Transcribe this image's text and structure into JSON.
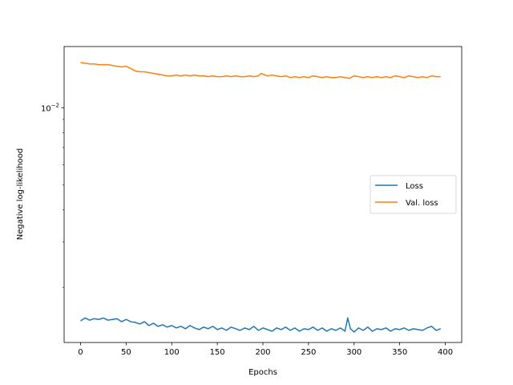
{
  "chart_data": {
    "type": "line",
    "title": "",
    "xlabel": "Epochs",
    "ylabel": "Negative log-likelihood",
    "yscale": "log",
    "xlim": [
      -18,
      418
    ],
    "ylim": [
      0.00122,
      0.0173
    ],
    "xticks": [
      0,
      50,
      100,
      150,
      200,
      250,
      300,
      350,
      400
    ],
    "xtick_labels": [
      "0",
      "50",
      "100",
      "150",
      "200",
      "250",
      "300",
      "350",
      "400"
    ],
    "ytick_major": [
      {
        "value": 0.01,
        "base": "10",
        "exp": "−2"
      }
    ],
    "legend": {
      "placement": "center-right"
    },
    "grid": false,
    "series": [
      {
        "name": "Loss",
        "color": "#1f77b4",
        "x": [
          0,
          5,
          10,
          15,
          20,
          25,
          30,
          35,
          40,
          45,
          50,
          55,
          60,
          65,
          70,
          75,
          80,
          85,
          90,
          95,
          100,
          105,
          110,
          115,
          120,
          125,
          130,
          135,
          140,
          145,
          150,
          155,
          160,
          165,
          170,
          175,
          180,
          185,
          190,
          195,
          200,
          205,
          210,
          215,
          220,
          225,
          230,
          235,
          240,
          245,
          250,
          255,
          260,
          265,
          270,
          275,
          280,
          285,
          290,
          293,
          296,
          300,
          305,
          310,
          315,
          320,
          325,
          330,
          335,
          340,
          345,
          350,
          355,
          360,
          365,
          370,
          375,
          380,
          385,
          390,
          395
        ],
        "values": [
          0.00148,
          0.00152,
          0.00149,
          0.00151,
          0.0015,
          0.00152,
          0.00149,
          0.0015,
          0.00151,
          0.00147,
          0.0015,
          0.00147,
          0.00146,
          0.00144,
          0.00147,
          0.00142,
          0.00145,
          0.00141,
          0.00143,
          0.0014,
          0.00142,
          0.00139,
          0.00141,
          0.00138,
          0.00142,
          0.00139,
          0.00137,
          0.0014,
          0.00138,
          0.00141,
          0.00137,
          0.00139,
          0.00136,
          0.0014,
          0.00138,
          0.00136,
          0.00139,
          0.00137,
          0.00141,
          0.00136,
          0.00139,
          0.00137,
          0.00135,
          0.00139,
          0.00137,
          0.0014,
          0.00136,
          0.00139,
          0.00135,
          0.00138,
          0.00137,
          0.0014,
          0.00136,
          0.00139,
          0.00135,
          0.00138,
          0.00136,
          0.00139,
          0.00135,
          0.00152,
          0.00138,
          0.00134,
          0.00139,
          0.00136,
          0.0014,
          0.00135,
          0.00138,
          0.00137,
          0.00139,
          0.00135,
          0.00138,
          0.00137,
          0.00139,
          0.00136,
          0.00138,
          0.00137,
          0.00136,
          0.00139,
          0.00141,
          0.00136,
          0.00138
        ]
      },
      {
        "name": "Val. loss",
        "color": "#ff7f0e",
        "x": [
          0,
          5,
          10,
          15,
          20,
          25,
          30,
          35,
          40,
          45,
          50,
          55,
          60,
          65,
          70,
          75,
          80,
          85,
          90,
          95,
          100,
          105,
          110,
          115,
          120,
          125,
          130,
          135,
          140,
          145,
          150,
          155,
          160,
          165,
          170,
          175,
          180,
          185,
          190,
          195,
          198,
          200,
          205,
          210,
          215,
          220,
          225,
          230,
          235,
          240,
          245,
          250,
          255,
          260,
          265,
          270,
          275,
          280,
          285,
          290,
          295,
          300,
          305,
          310,
          315,
          320,
          325,
          330,
          335,
          340,
          345,
          350,
          355,
          360,
          365,
          370,
          375,
          380,
          385,
          390,
          395
        ],
        "values": [
          0.015,
          0.0149,
          0.0148,
          0.0148,
          0.0147,
          0.0147,
          0.0147,
          0.0146,
          0.0145,
          0.0144,
          0.0145,
          0.0142,
          0.0139,
          0.0138,
          0.0138,
          0.0137,
          0.0136,
          0.0135,
          0.0134,
          0.0133,
          0.0133,
          0.0134,
          0.0133,
          0.0134,
          0.0133,
          0.0134,
          0.0133,
          0.0133,
          0.0132,
          0.0133,
          0.0132,
          0.0132,
          0.0133,
          0.0132,
          0.0133,
          0.0132,
          0.0132,
          0.0133,
          0.0132,
          0.0133,
          0.0136,
          0.0135,
          0.0133,
          0.0134,
          0.0133,
          0.0132,
          0.0133,
          0.0131,
          0.0132,
          0.0131,
          0.0132,
          0.0131,
          0.0133,
          0.0132,
          0.0131,
          0.0132,
          0.0131,
          0.0131,
          0.0132,
          0.0131,
          0.013,
          0.0133,
          0.0132,
          0.0131,
          0.0132,
          0.0131,
          0.0132,
          0.0131,
          0.0132,
          0.0131,
          0.0133,
          0.0132,
          0.0131,
          0.0133,
          0.0132,
          0.0131,
          0.0132,
          0.0131,
          0.0133,
          0.0132,
          0.0132
        ]
      }
    ]
  }
}
